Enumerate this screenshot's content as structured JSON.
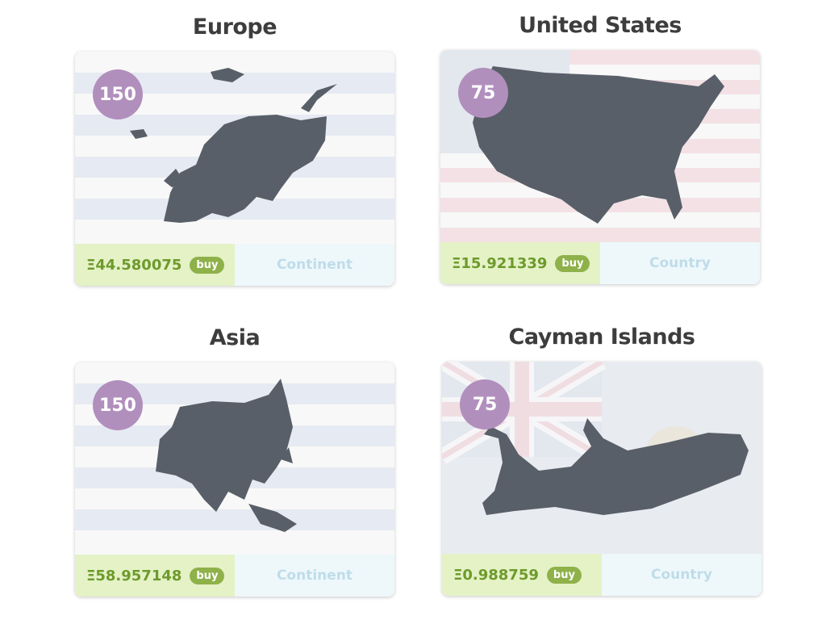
{
  "currency_symbol": "Ξ",
  "colors": {
    "badge": "#b18fbd",
    "price_bg": "#e4f2c6",
    "price_text": "#6e9a2b",
    "buy_bg": "#8fb14a",
    "type_bg": "#eef8fb",
    "type_text": "#bfdce9",
    "map": "#595f68"
  },
  "tiles": [
    {
      "name": "Europe",
      "count": "150",
      "price": "Ξ44.580075",
      "buy_label": "buy",
      "type": "Continent",
      "map_icon": "europe-map"
    },
    {
      "name": "United States",
      "count": "75",
      "price": "Ξ15.921339",
      "buy_label": "buy",
      "type": "Country",
      "map_icon": "usa-map",
      "flag": "usa-flag"
    },
    {
      "name": "Asia",
      "count": "150",
      "price": "Ξ58.957148",
      "buy_label": "buy",
      "type": "Continent",
      "map_icon": "asia-map"
    },
    {
      "name": "Cayman Islands",
      "count": "75",
      "price": "Ξ0.988759",
      "buy_label": "buy",
      "type": "Country",
      "map_icon": "cayman-map",
      "flag": "cayman-flag"
    }
  ]
}
